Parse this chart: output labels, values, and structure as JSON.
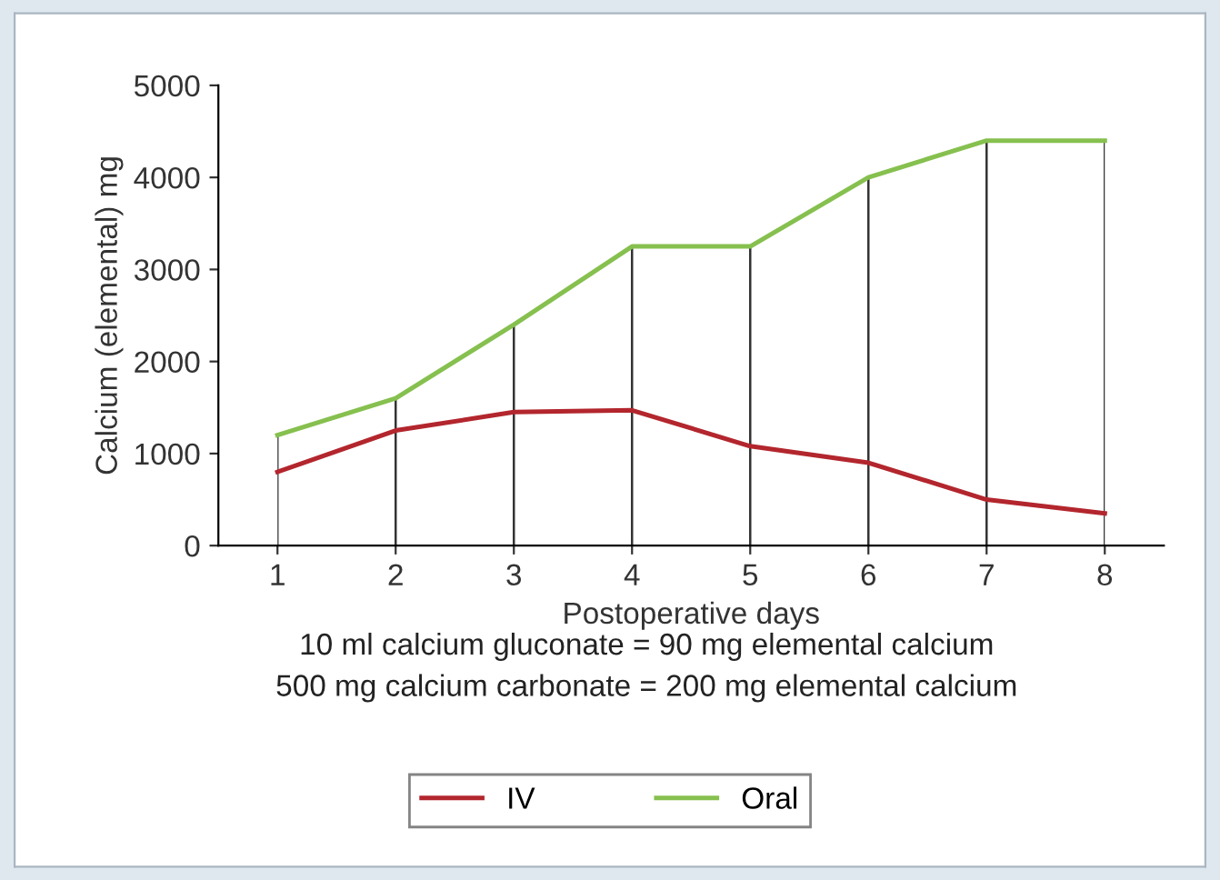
{
  "chart_data": {
    "type": "line",
    "xlabel": "Postoperative days",
    "ylabel": "Calcium (elemental) mg",
    "x": [
      1,
      2,
      3,
      4,
      5,
      6,
      7,
      8
    ],
    "series": [
      {
        "name": "IV",
        "color": "#b3262d",
        "values": [
          800,
          1250,
          1450,
          1470,
          1080,
          900,
          500,
          350
        ]
      },
      {
        "name": "Oral",
        "color": "#86c04f",
        "values": [
          1200,
          1600,
          2400,
          3250,
          3250,
          4000,
          4400,
          4400
        ]
      }
    ],
    "xlim": [
      0.5,
      8.5
    ],
    "xticks": [
      1,
      2,
      3,
      4,
      5,
      6,
      7,
      8
    ],
    "ylim": [
      0,
      5000
    ],
    "yticks": [
      0,
      1000,
      2000,
      3000,
      4000,
      5000
    ],
    "grid": "x",
    "legend": "bottom",
    "marker": "none",
    "annotations": [
      "10 ml calcium gluconate = 90 mg elemental calcium",
      "500 mg calcium carbonate = 200 mg elemental calcium"
    ]
  }
}
